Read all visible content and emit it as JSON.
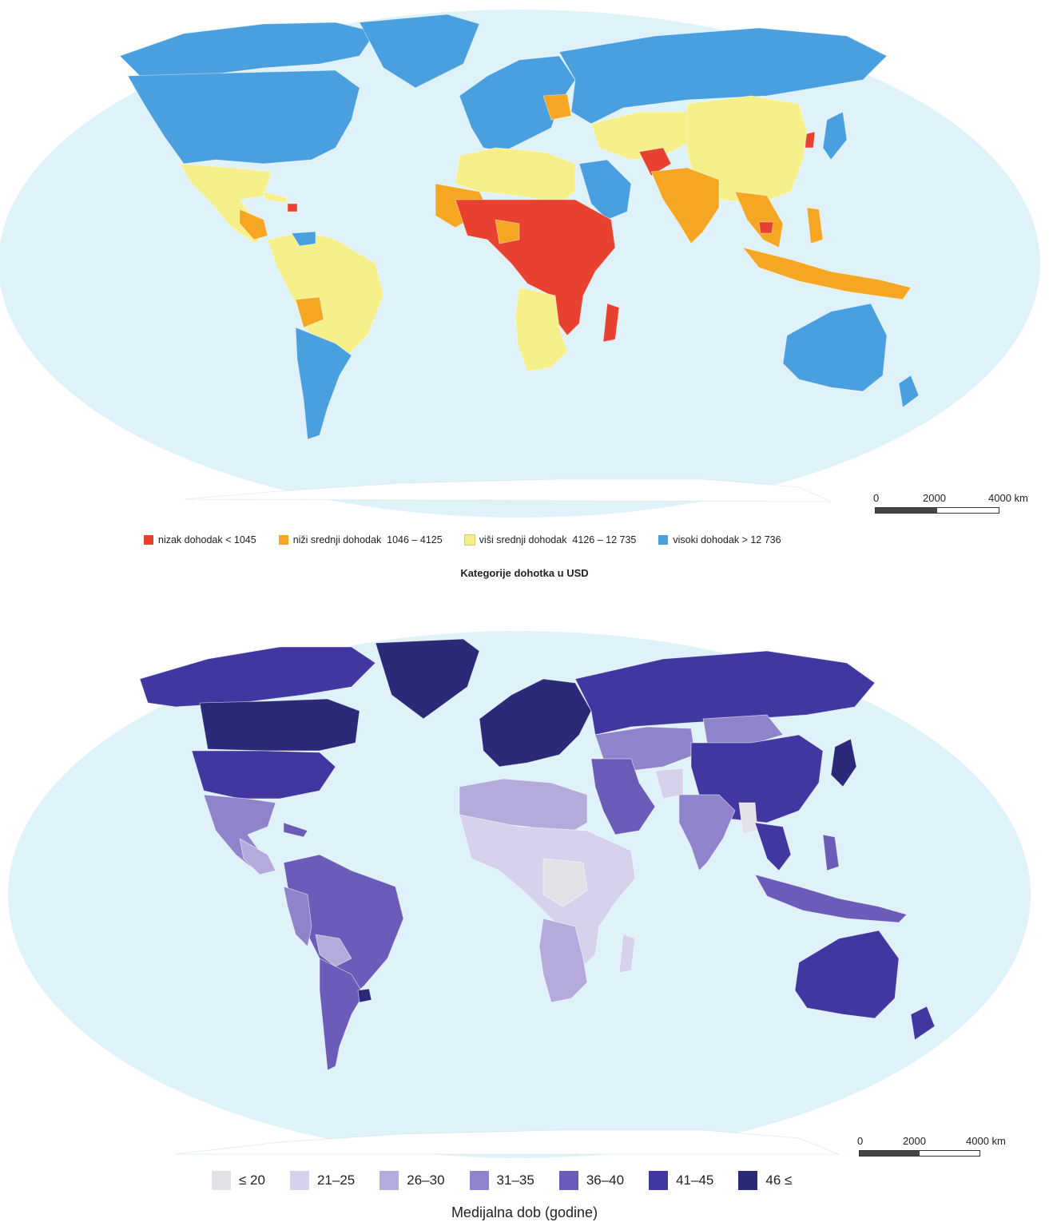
{
  "map_income": {
    "scale": {
      "labels": [
        "0",
        "2000",
        "4000 km"
      ]
    },
    "legend": [
      {
        "label": "nizak dohodak",
        "range": "< 1045",
        "color": "#e8412f"
      },
      {
        "label": "niži srednji dohodak",
        "range": "1046 – 4125",
        "color": "#f5a623"
      },
      {
        "label": "viši srednji dohodak",
        "range": "4126 – 12 735",
        "color": "#f5f08a"
      },
      {
        "label": "visoki dohodak",
        "range": "> 12 736",
        "color": "#4a9fde"
      }
    ],
    "caption": "Kategorije dohotka u USD",
    "ocean_color": "#dff1f9"
  },
  "map_age": {
    "scale": {
      "labels": [
        "0",
        "2000",
        "4000 km"
      ]
    },
    "legend": [
      {
        "label": "≤ 20",
        "color": "#e2e2e8"
      },
      {
        "label": "21–25",
        "color": "#d6d2ec"
      },
      {
        "label": "26–30",
        "color": "#b4abdc"
      },
      {
        "label": "31–35",
        "color": "#8f84cb"
      },
      {
        "label": "36–40",
        "color": "#6a5cb8"
      },
      {
        "label": "41–45",
        "color": "#4038a0"
      },
      {
        "label": "46 ≤",
        "color": "#2a2a78"
      }
    ],
    "caption": "Medijalna dob (godine)",
    "ocean_color": "#dff1f9"
  }
}
